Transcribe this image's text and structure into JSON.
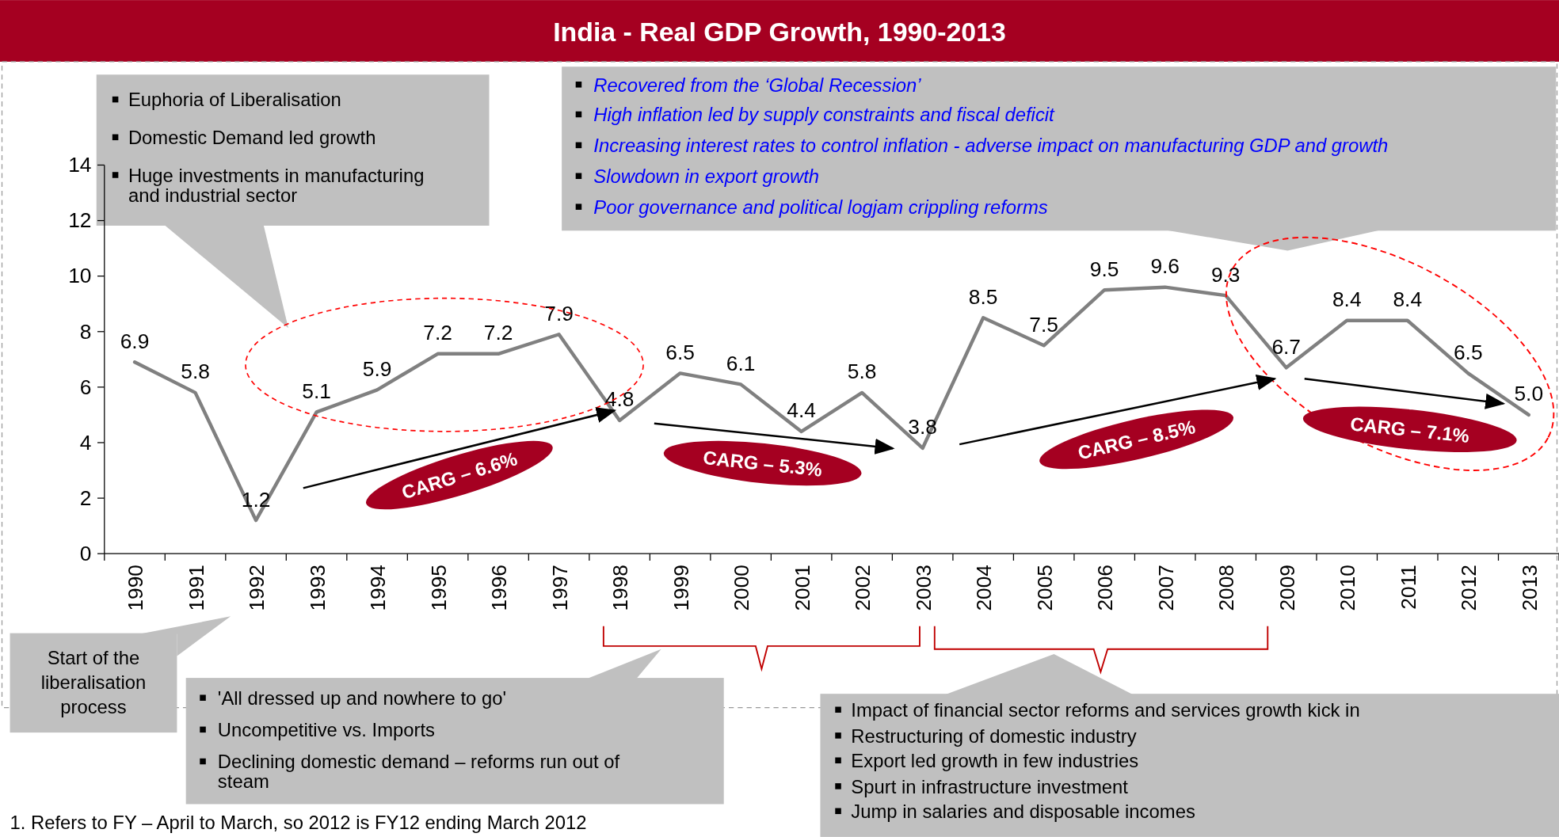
{
  "chart_data": {
    "type": "line",
    "title": "India - Real GDP Growth, 1990-2013",
    "categories": [
      "1990",
      "1991",
      "1992",
      "1993",
      "1994",
      "1995",
      "1996",
      "1997",
      "1998",
      "1999",
      "2000",
      "2001",
      "2002",
      "2003",
      "2004",
      "2005",
      "2006",
      "2007",
      "2008",
      "2009",
      "2010",
      "2011",
      "2012",
      "2013"
    ],
    "values": [
      6.9,
      5.8,
      1.2,
      5.1,
      5.9,
      7.2,
      7.2,
      7.9,
      4.8,
      6.5,
      6.1,
      4.4,
      5.8,
      3.8,
      8.5,
      7.5,
      9.5,
      9.6,
      9.3,
      6.7,
      8.4,
      8.4,
      6.5,
      5.0
    ],
    "color": "#808080",
    "ylim": [
      0,
      14
    ],
    "yticks": [
      0,
      2,
      4,
      6,
      8,
      10,
      12,
      14
    ],
    "value_labels": [
      "6.9",
      "5.8",
      "1.2",
      "5.1",
      "5.9",
      "7.2",
      "7.2",
      "7.9",
      "4.8",
      "6.5",
      "6.1",
      "4.4",
      "5.8",
      "3.8",
      "8.5",
      "7.5",
      "9.5",
      "9.6",
      "9.3",
      "6.7",
      "8.4",
      "8.4",
      "6.5",
      "5.0"
    ],
    "annotations": [
      "Euphoria of Liberalisation",
      "Domestic Demand led growth",
      "Huge investments in manufacturing and industrial sector",
      "Recovered from the ‘Global Recession’",
      "High inflation led by supply constraints and fiscal deficit",
      "Increasing interest rates to control inflation - adverse impact on manufacturing GDP and growth",
      "Slowdown in export growth",
      "Poor governance and political logjam crippling reforms",
      "Start of the liberalisation process",
      "'All dressed up and nowhere to go'",
      "Uncompetitive vs. Imports",
      "Declining domestic demand – reforms run out of steam",
      "Impact of financial sector reforms  and services growth kick in",
      "Restructuring of domestic industry",
      "Export led growth in few industries",
      "Spurt in infrastructure investment",
      "Jump in salaries and disposable incomes",
      "CARG – 6.6%",
      "CARG – 5.3%",
      "CARG – 8.5%",
      "CARG – 7.1%",
      "1.  Refers to FY – April to March, so 2012 is FY12  ending March 2012"
    ]
  }
}
